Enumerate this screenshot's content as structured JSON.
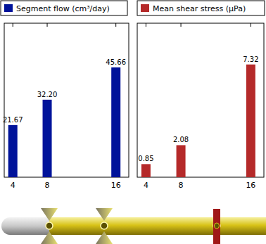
{
  "chart_data": [
    {
      "type": "bar",
      "x": [
        4,
        8,
        16
      ],
      "series": [
        {
          "name": "Segment flow (cm³/day)",
          "color": "#00139a",
          "values": [
            21.67,
            32.2,
            45.66
          ]
        }
      ],
      "value_labels": [
        "21.67",
        "32.20",
        "45.66"
      ],
      "xlim": [
        3,
        17.5
      ],
      "xticks": [
        4,
        8,
        16
      ],
      "ylim": [
        0,
        64
      ],
      "data_labels": true,
      "tick_labels": "x",
      "legend": "top",
      "grid": false
    },
    {
      "type": "bar",
      "x": [
        4,
        8,
        16
      ],
      "series": [
        {
          "name": "Mean shear stress (μPa)",
          "color": "#b52a2a",
          "values": [
            0.85,
            2.08,
            7.32
          ]
        }
      ],
      "xlim": [
        3,
        17.5
      ],
      "xticks": [
        4,
        8,
        16
      ],
      "ylim": [
        0,
        10
      ],
      "data_labels": true,
      "tick_labels": "x",
      "legend": "top",
      "grid": false
    }
  ]
}
